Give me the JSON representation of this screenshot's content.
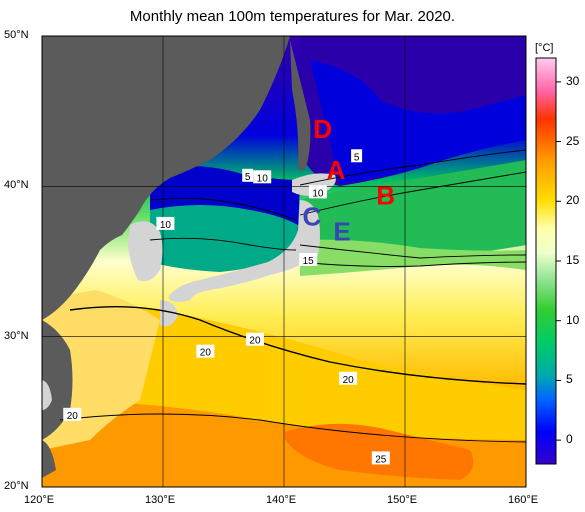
{
  "title": "Monthly mean 100m temperatures for Mar. 2020.",
  "colorbar": {
    "unit": "[°C]",
    "ticks": [
      "30",
      "25",
      "20",
      "15",
      "10",
      "5",
      "0"
    ],
    "tick_values": [
      30,
      25,
      20,
      15,
      10,
      5,
      0
    ],
    "min": -2,
    "max": 32
  },
  "axes": {
    "lat_labels": [
      "50°N",
      "40°N",
      "30°N",
      "20°N"
    ],
    "lat_values": [
      50,
      40,
      30,
      20
    ],
    "lon_labels": [
      "120°E",
      "130°E",
      "140°E",
      "150°E",
      "160°E"
    ],
    "lon_values": [
      120,
      130,
      140,
      150,
      160
    ],
    "lat_range": [
      20,
      50
    ],
    "lon_range": [
      120,
      160
    ],
    "grid": true
  },
  "region_markers": [
    {
      "label": "D",
      "lon": 143.2,
      "lat": 43.2,
      "color": "#ff0000"
    },
    {
      "label": "A",
      "lon": 144.3,
      "lat": 40.5,
      "color": "#ff0000"
    },
    {
      "label": "B",
      "lon": 148.4,
      "lat": 38.8,
      "color": "#ff0000"
    },
    {
      "label": "C",
      "lon": 142.3,
      "lat": 37.4,
      "color": "#3a45b5"
    },
    {
      "label": "E",
      "lon": 144.8,
      "lat": 36.4,
      "color": "#3a45b5"
    }
  ],
  "contour_labels": [
    {
      "text": "5",
      "lon": 137.0,
      "lat": 40.7
    },
    {
      "text": "10",
      "lon": 138.2,
      "lat": 40.6
    },
    {
      "text": "5",
      "lon": 146.0,
      "lat": 42.0
    },
    {
      "text": "10",
      "lon": 142.8,
      "lat": 39.6
    },
    {
      "text": "10",
      "lon": 130.2,
      "lat": 37.5
    },
    {
      "text": "15",
      "lon": 142.0,
      "lat": 35.1
    },
    {
      "text": "20",
      "lon": 133.5,
      "lat": 29.0
    },
    {
      "text": "20",
      "lon": 137.6,
      "lat": 29.8
    },
    {
      "text": "20",
      "lon": 145.3,
      "lat": 27.2
    },
    {
      "text": "20",
      "lon": 122.5,
      "lat": 24.8
    },
    {
      "text": "25",
      "lon": 148.0,
      "lat": 21.9
    }
  ],
  "colors": {
    "land_neighbor": "#5b5b5b",
    "land_japan": "#d4d4d4",
    "land_other": "#dcdcdc"
  }
}
